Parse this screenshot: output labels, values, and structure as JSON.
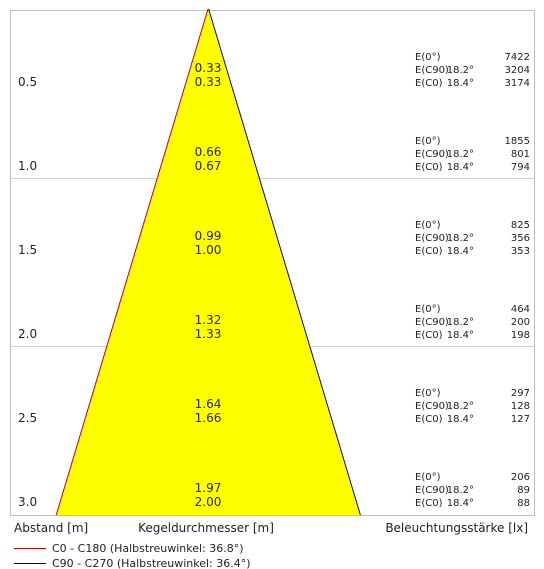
{
  "chart_data": {
    "type": "table",
    "title": "",
    "footer": {
      "distance_label": "Abstand [m]",
      "diameter_label": "Kegeldurchmesser [m]",
      "illuminance_label": "Beleuchtungsstärke [lx]"
    },
    "legend": [
      {
        "name": "C0 - C180 (Halbstreuwinkel: 36.8°)",
        "color": "#cc0000"
      },
      {
        "name": "C90 - C270 (Halbstreuwinkel: 36.4°)",
        "color": "#000080"
      }
    ],
    "cone_color": "#ffff00",
    "rows": [
      {
        "distance": "0.5",
        "d1": "0.33",
        "d2": "0.33",
        "labels": [
          "E(0°)",
          "E(C90)",
          "E(C0)"
        ],
        "angles": [
          "",
          "18.2°",
          "18.4°"
        ],
        "values": [
          7422,
          3204,
          3174
        ]
      },
      {
        "distance": "1.0",
        "d1": "0.66",
        "d2": "0.67",
        "labels": [
          "E(0°)",
          "E(C90)",
          "E(C0)"
        ],
        "angles": [
          "",
          "18.2°",
          "18.4°"
        ],
        "values": [
          1855,
          801,
          794
        ]
      },
      {
        "distance": "1.5",
        "d1": "0.99",
        "d2": "1.00",
        "labels": [
          "E(0°)",
          "E(C90)",
          "E(C0)"
        ],
        "angles": [
          "",
          "18.2°",
          "18.4°"
        ],
        "values": [
          825,
          356,
          353
        ]
      },
      {
        "distance": "2.0",
        "d1": "1.32",
        "d2": "1.33",
        "labels": [
          "E(0°)",
          "E(C90)",
          "E(C0)"
        ],
        "angles": [
          "",
          "18.2°",
          "18.4°"
        ],
        "values": [
          464,
          200,
          198
        ]
      },
      {
        "distance": "2.5",
        "d1": "1.64",
        "d2": "1.66",
        "labels": [
          "E(0°)",
          "E(C90)",
          "E(C0)"
        ],
        "angles": [
          "",
          "18.2°",
          "18.4°"
        ],
        "values": [
          297,
          128,
          127
        ]
      },
      {
        "distance": "3.0",
        "d1": "1.97",
        "d2": "2.00",
        "labels": [
          "E(0°)",
          "E(C90)",
          "E(C0)"
        ],
        "angles": [
          "",
          "18.2°",
          "18.4°"
        ],
        "values": [
          206,
          89,
          88
        ]
      }
    ]
  }
}
